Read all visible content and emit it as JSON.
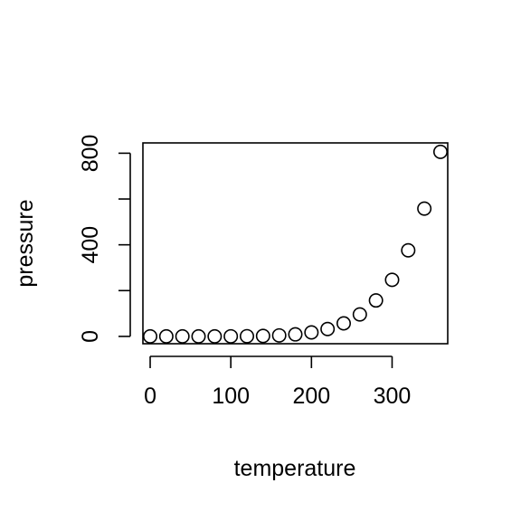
{
  "chart_data": {
    "type": "scatter",
    "xlabel": "temperature",
    "ylabel": "pressure",
    "xlim": [
      -9,
      369
    ],
    "ylim": [
      -32,
      845
    ],
    "x_ticks": [
      0,
      100,
      200,
      300
    ],
    "y_ticks": [
      0,
      200,
      400,
      600,
      800
    ],
    "y_tick_labels": [
      "0",
      "",
      "400",
      "",
      "800"
    ],
    "grid": false,
    "legend": "none",
    "marker": "open-circle",
    "series": [
      {
        "x": [
          0,
          20,
          40,
          60,
          80,
          100,
          120,
          140,
          160,
          180,
          200,
          220,
          240,
          260,
          280,
          300,
          320,
          340,
          360
        ],
        "y": [
          0.0002,
          0.0012,
          0.006,
          0.03,
          0.09,
          0.27,
          0.75,
          1.85,
          4.2,
          8.8,
          17.3,
          32.1,
          57,
          96,
          157,
          247,
          376,
          558,
          806
        ]
      }
    ]
  }
}
